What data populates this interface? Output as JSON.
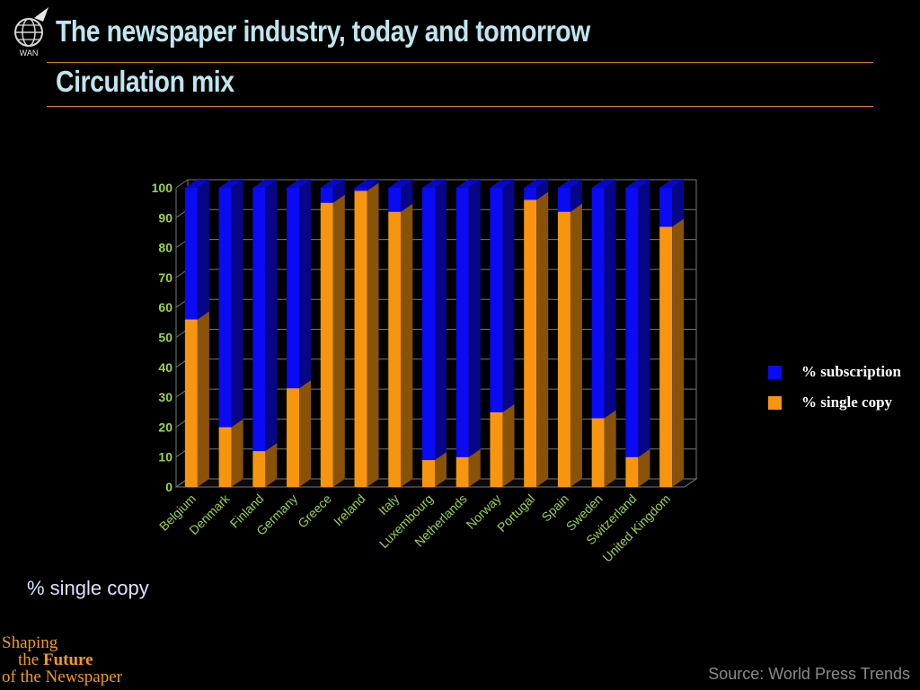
{
  "header": {
    "title": "The newspaper industry, today and tomorrow",
    "subtitle": "Circulation mix",
    "logo_text": "WAN"
  },
  "caption": "% single copy",
  "source": "Source: World Press Trends",
  "brand": {
    "line1": "Shaping",
    "line2_prefix": "the ",
    "line2_emph": "Future",
    "line3": "of the Newspaper"
  },
  "colors": {
    "subscription": "#0a0af5",
    "single_copy": "#f7960e",
    "axis_text": "#9ed24a",
    "accent": "#e07a2a"
  },
  "chart_data": {
    "type": "bar",
    "stacked": true,
    "categories": [
      "Belgium",
      "Denmark",
      "Finland",
      "Germany",
      "Greece",
      "Ireland",
      "Italy",
      "Luxembourg",
      "Netherlands",
      "Norway",
      "Portugal",
      "Spain",
      "Sweden",
      "Switzerland",
      "United Kingdom"
    ],
    "series": [
      {
        "name": "% single copy",
        "values": [
          56,
          20,
          12,
          33,
          95,
          99,
          92,
          9,
          10,
          25,
          96,
          92,
          23,
          10,
          87
        ]
      },
      {
        "name": "% subscription",
        "values": [
          44,
          80,
          88,
          67,
          5,
          1,
          8,
          91,
          90,
          75,
          4,
          8,
          77,
          90,
          13
        ]
      }
    ],
    "legend": [
      "% subscription",
      "% single copy"
    ],
    "legend_position": "right",
    "ylim": [
      0,
      100
    ],
    "yticks": [
      0,
      10,
      20,
      30,
      40,
      50,
      60,
      70,
      80,
      90,
      100
    ],
    "grid": true,
    "three_d": true
  }
}
